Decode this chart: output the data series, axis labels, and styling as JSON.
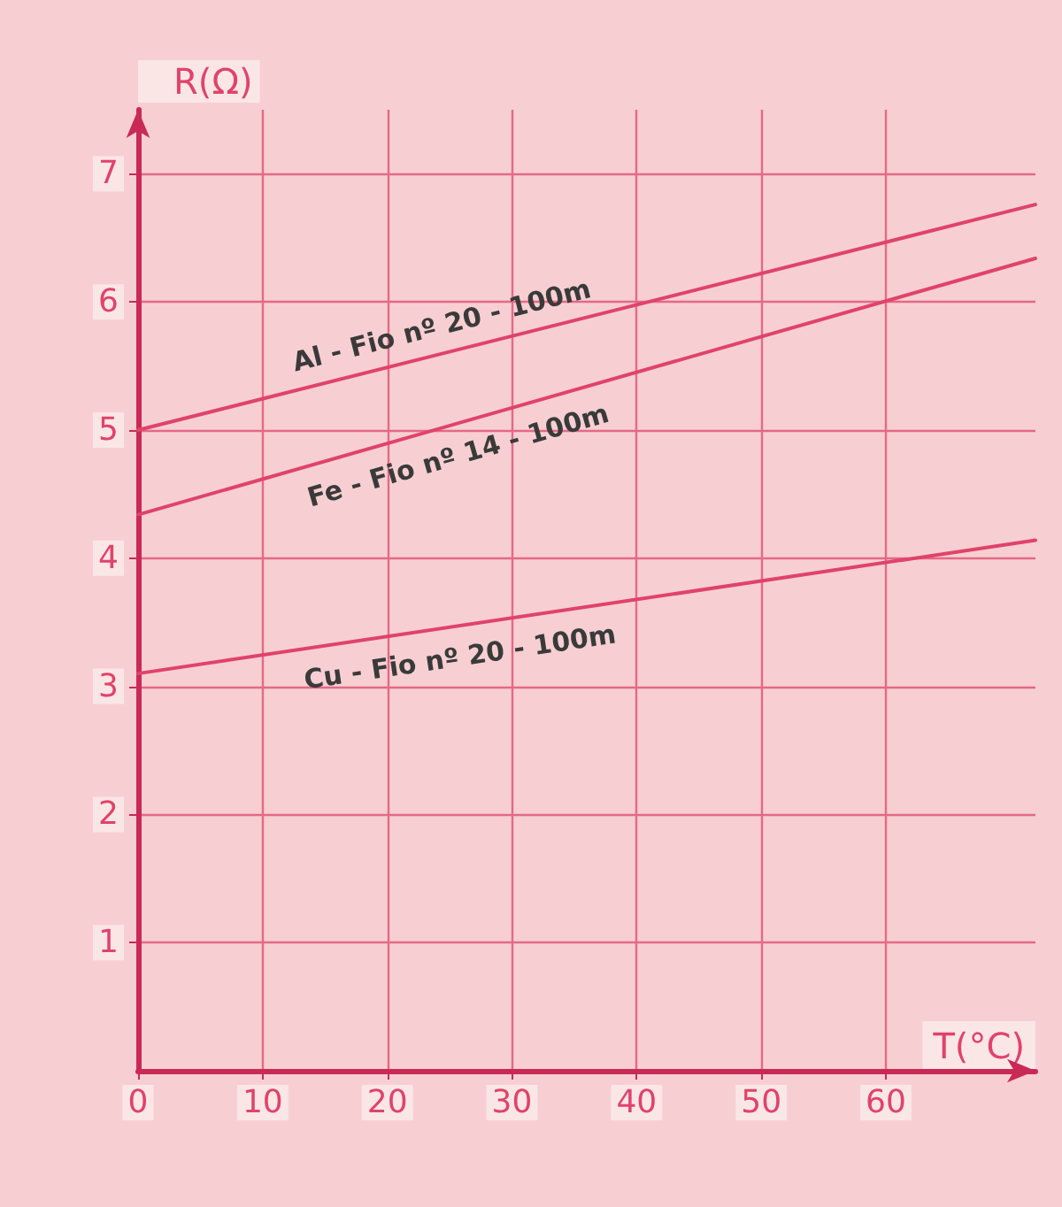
{
  "chart_data": {
    "type": "line",
    "xlabel": "T(°C)",
    "ylabel": "R(Ω)",
    "x": [
      0,
      72
    ],
    "series": [
      {
        "name": "Al - Fio nº 20 - 100m",
        "color": "#e0436a",
        "values": [
          5.0,
          6.76
        ]
      },
      {
        "name": "Fe - Fio nº 14 - 100m",
        "color": "#e0436a",
        "values": [
          4.34,
          6.34
        ]
      },
      {
        "name": "Cu - Fio nº 20 - 100m",
        "color": "#e0436a",
        "values": [
          3.1,
          4.14
        ]
      }
    ],
    "xlim": [
      0,
      72
    ],
    "xticks": [
      0,
      10,
      20,
      30,
      40,
      50,
      60
    ],
    "ylim": [
      0,
      7.5
    ],
    "yticks": [
      1,
      2,
      3,
      4,
      5,
      6,
      7
    ],
    "grid": true,
    "legend": false,
    "marker": "none",
    "line_style": "solid"
  }
}
